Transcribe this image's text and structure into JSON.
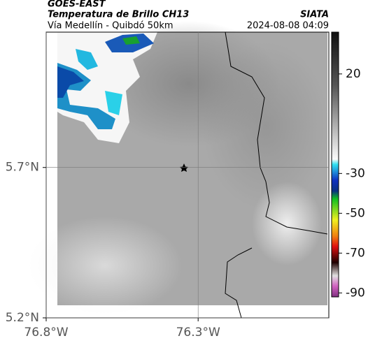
{
  "header": {
    "source": "GOES-EAST",
    "product": "Temperatura de Brillo CH13",
    "agency": "SIATA",
    "route": "Vía Medellín - Quibdó 50km",
    "timestamp": "2024-08-08 04:09"
  },
  "map": {
    "lonlim": [
      -76.8,
      -75.87
    ],
    "latlim": [
      5.2,
      6.15
    ],
    "lonticks": [
      {
        "value": -76.8,
        "label": "76.8°W"
      },
      {
        "value": -76.3,
        "label": "76.3°W"
      }
    ],
    "latticks": [
      {
        "value": 5.7,
        "label": "5.7°N"
      },
      {
        "value": 5.2,
        "label": "5.2°N"
      }
    ]
  },
  "colorbar": {
    "range": [
      -92,
      41
    ],
    "ticks": [
      20,
      -30,
      -50,
      -70,
      -90
    ]
  }
}
